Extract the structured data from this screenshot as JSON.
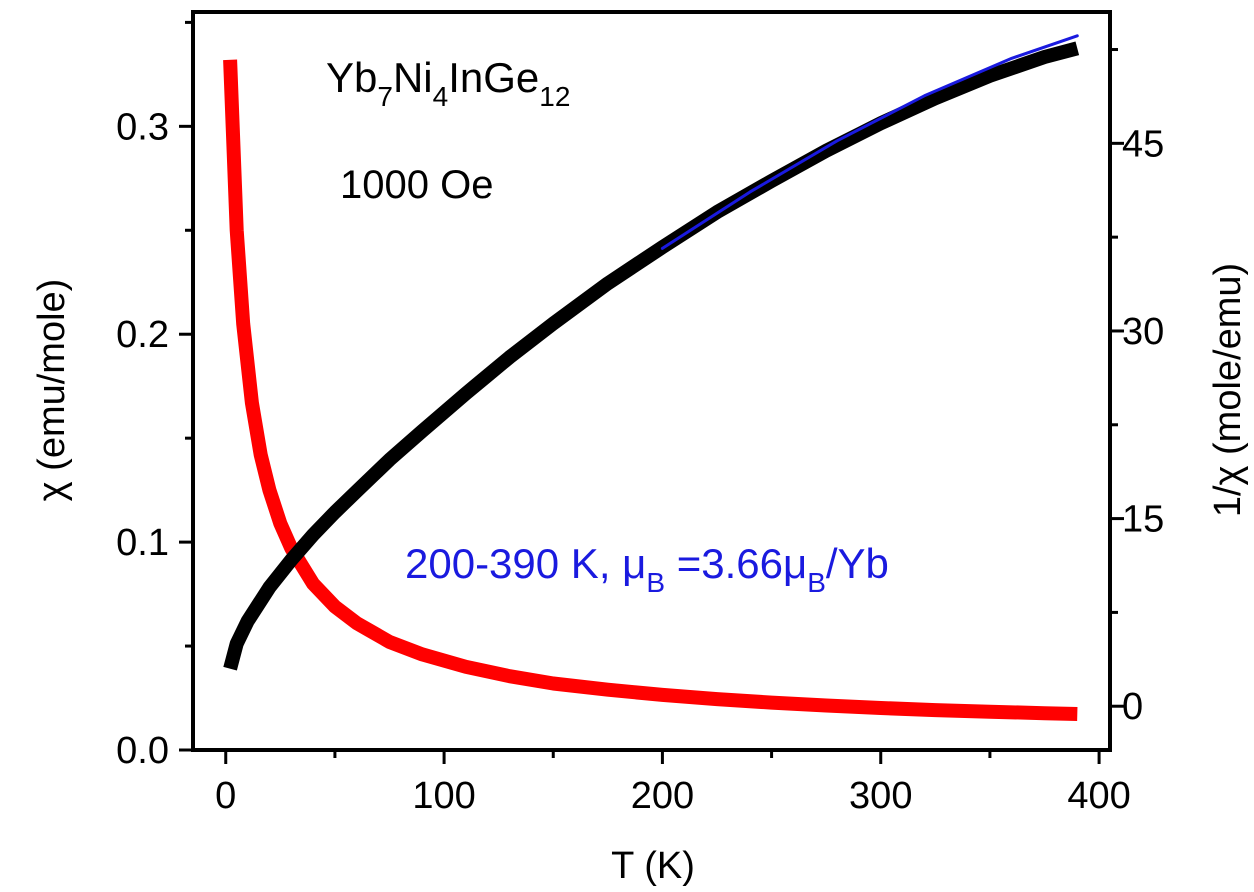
{
  "chart_data": {
    "type": "line",
    "xlabel": "T (K)",
    "ylabel_left": "χ (emu/mole)",
    "ylabel_right": "1/χ (mole/emu)",
    "xlim": [
      -15,
      405
    ],
    "ylim_left": [
      0.0,
      0.355
    ],
    "ylim_right": [
      -3.5,
      55.5
    ],
    "x_ticks": [
      0,
      100,
      200,
      300,
      400
    ],
    "y_left_ticks": [
      "0.0",
      "0.1",
      "0.2",
      "0.3"
    ],
    "y_right_ticks": [
      "0",
      "15",
      "30",
      "45"
    ],
    "annotations": {
      "compound": {
        "base": [
          "Yb",
          "Ni",
          "InGe"
        ],
        "subs": [
          "7",
          "4",
          "12"
        ]
      },
      "field": "1000 Oe",
      "fit": {
        "range": "200-390 K, μ",
        "sub1": "B",
        "mid": " =3.66μ",
        "sub2": "B",
        "end": "/Yb"
      }
    },
    "colors": {
      "chi": "#ff0000",
      "inv_chi": "#000000",
      "fit": "#1a1adf"
    },
    "series": [
      {
        "key": "chi",
        "axis": "left",
        "x": [
          2,
          5,
          8,
          12,
          16,
          20,
          25,
          30,
          40,
          50,
          60,
          75,
          90,
          110,
          130,
          150,
          175,
          200,
          225,
          250,
          275,
          300,
          325,
          350,
          375,
          390
        ],
        "values": [
          0.332,
          0.25,
          0.205,
          0.167,
          0.142,
          0.125,
          0.109,
          0.097,
          0.08,
          0.069,
          0.061,
          0.052,
          0.046,
          0.04,
          0.0355,
          0.032,
          0.029,
          0.0265,
          0.0245,
          0.0228,
          0.0214,
          0.0202,
          0.0192,
          0.0184,
          0.0177,
          0.0173
        ]
      },
      {
        "key": "inv_chi",
        "axis": "right",
        "x": [
          2,
          5,
          10,
          20,
          30,
          40,
          50,
          60,
          75,
          90,
          110,
          130,
          150,
          175,
          200,
          225,
          250,
          275,
          300,
          325,
          350,
          375,
          390
        ],
        "values": [
          3.0,
          5.0,
          6.8,
          9.5,
          11.7,
          13.7,
          15.5,
          17.2,
          19.7,
          22.0,
          25.0,
          27.9,
          30.6,
          33.8,
          36.7,
          39.5,
          42.0,
          44.4,
          46.6,
          48.6,
          50.4,
          51.9,
          52.6
        ]
      },
      {
        "key": "fit",
        "axis": "right",
        "x": [
          200,
          240,
          280,
          320,
          360,
          390
        ],
        "values": [
          36.6,
          41.1,
          45.2,
          48.8,
          51.8,
          53.6
        ]
      }
    ]
  }
}
